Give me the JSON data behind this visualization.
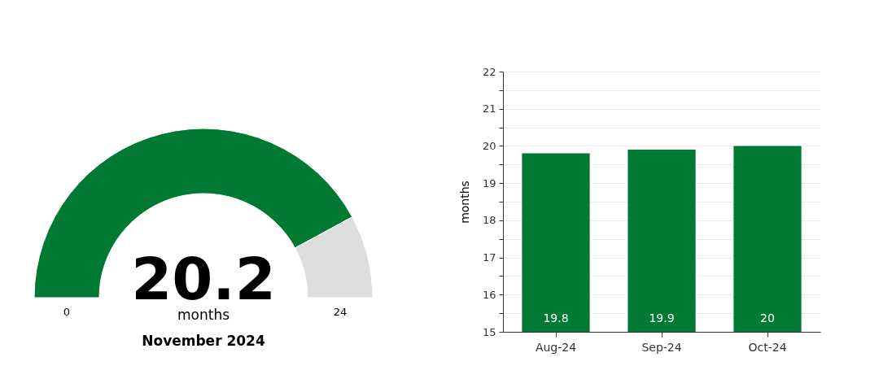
{
  "chart_data": [
    {
      "type": "donut",
      "categories": [
        null,
        null
      ],
      "values": [
        20.2,
        3.8
      ],
      "colors": [
        "#007a33",
        "#dddddd"
      ],
      "value_labels": [
        "20.2",
        null
      ],
      "annotations": [
        "0",
        "24"
      ],
      "xlabel": "months",
      "title": "November 2024"
    },
    {
      "type": "bar",
      "categories": [
        "Aug-24",
        "Sep-24",
        "Oct-24"
      ],
      "values": [
        19.8,
        19.9,
        20
      ],
      "color": "#007a33",
      "ylabel": "months",
      "ylim": [
        15,
        22
      ],
      "yticks": [
        15,
        {
          "value": 15.5,
          "label": null
        },
        16,
        {
          "value": 16.5,
          "label": null
        },
        17,
        {
          "value": 17.5,
          "label": null
        },
        18,
        {
          "value": 18.5,
          "label": null
        },
        19,
        {
          "value": 19.5,
          "label": null
        },
        20,
        {
          "value": 20.5,
          "label": null
        },
        21,
        {
          "value": 21.5,
          "label": null
        },
        22
      ],
      "grid": true,
      "data_labels": true
    }
  ]
}
